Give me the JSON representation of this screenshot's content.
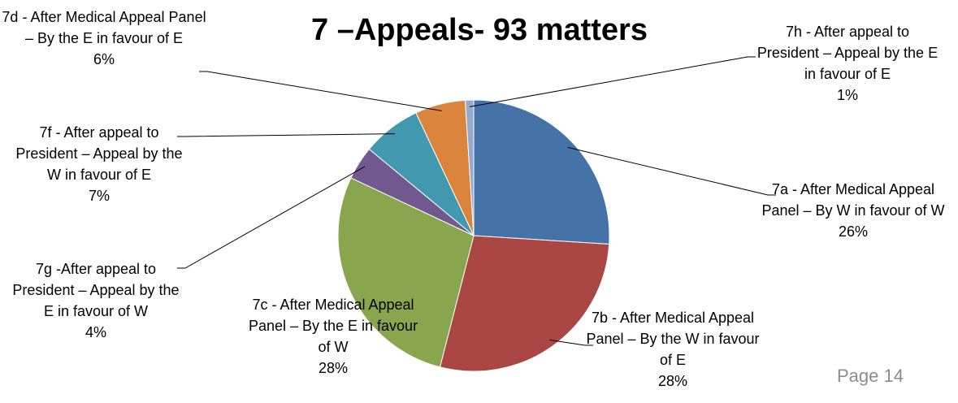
{
  "chart_data": {
    "type": "pie",
    "title": "7 –Appeals- 93 matters",
    "categories": [
      "7a - After Medical Appeal Panel – By W in favour of W",
      "7b - After Medical Appeal Panel – By the W in favour of E",
      "7c - After Medical Appeal Panel – By the E in favour of W",
      "7g -After appeal to President  – Appeal by the E in favour of W",
      "7f - After appeal to President  – Appeal by the W in favour of E",
      "7d - After Medical Appeal Panel – By the E in favour of E",
      "7h - After appeal to President  – Appeal by the E in favour of E"
    ],
    "values": [
      26,
      28,
      28,
      4,
      7,
      6,
      1
    ],
    "value_labels": [
      "26%",
      "28%",
      "28%",
      "4%",
      "7%",
      "6%",
      "1%"
    ],
    "colors": [
      "#4572a7",
      "#aa4643",
      "#89a54e",
      "#71588f",
      "#4198af",
      "#db843d",
      "#93a9cf"
    ]
  },
  "page_number": "Page 14"
}
